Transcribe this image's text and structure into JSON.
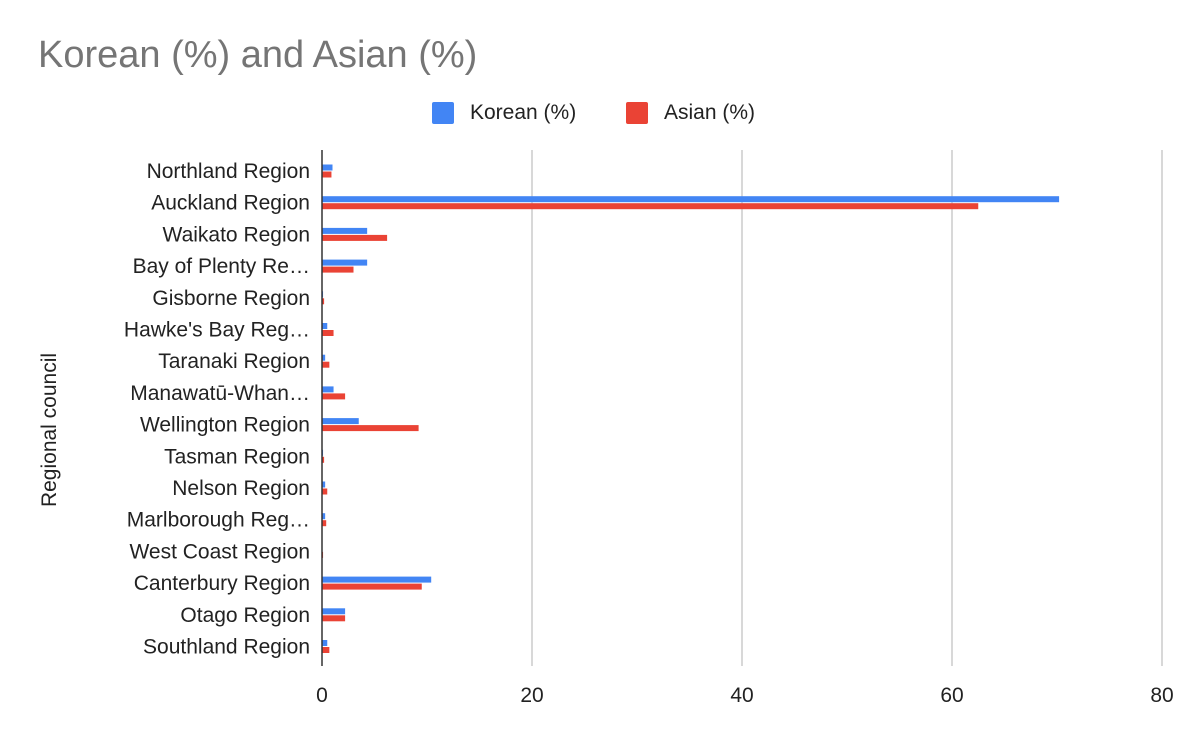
{
  "chart_data": {
    "type": "bar",
    "orientation": "horizontal",
    "title": "Korean (%) and Asian (%)",
    "ylabel": "Regional council",
    "xlabel": "",
    "xlim": [
      0,
      80
    ],
    "xticks": [
      "0",
      "20",
      "40",
      "60",
      "80"
    ],
    "grid": true,
    "legend_position": "top",
    "categories": [
      "Northland Region",
      "Auckland Region",
      "Waikato Region",
      "Bay of Plenty Re…",
      "Gisborne Region",
      "Hawke's Bay Reg…",
      "Taranaki Region",
      "Manawatū-Whan…",
      "Wellington Region",
      "Tasman Region",
      "Nelson Region",
      "Marlborough Reg…",
      "West Coast Region",
      "Canterbury Region",
      "Otago Region",
      "Southland Region"
    ],
    "series": [
      {
        "name": "Korean (%)",
        "color": "#4285F4",
        "values": [
          1.0,
          70.2,
          4.3,
          4.3,
          0.1,
          0.5,
          0.3,
          1.1,
          3.5,
          0.1,
          0.3,
          0.3,
          0.0,
          10.4,
          2.2,
          0.5
        ]
      },
      {
        "name": "Asian (%)",
        "color": "#EA4335",
        "values": [
          0.9,
          62.5,
          6.2,
          3.0,
          0.2,
          1.1,
          0.7,
          2.2,
          9.2,
          0.2,
          0.5,
          0.4,
          0.1,
          9.5,
          2.2,
          0.7
        ]
      }
    ]
  }
}
